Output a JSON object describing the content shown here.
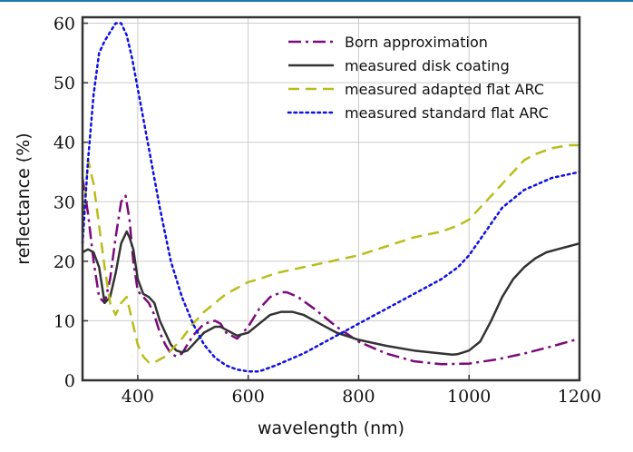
{
  "chart_data": {
    "type": "line",
    "xlabel": "wavelength (nm)",
    "ylabel": "reflectance (%)",
    "xlim": [
      300,
      1200
    ],
    "ylim": [
      0,
      61
    ],
    "xticks": [
      400,
      600,
      800,
      1000,
      1200
    ],
    "yticks": [
      0,
      10,
      20,
      30,
      40,
      50,
      60
    ],
    "grid": true,
    "legend_position": "top-right",
    "series": [
      {
        "name": "Born approximation",
        "color": "#7b0a7b",
        "dash": "dashdot",
        "x": [
          300,
          310,
          320,
          330,
          340,
          350,
          360,
          370,
          378,
          385,
          392,
          400,
          410,
          420,
          430,
          440,
          450,
          460,
          470,
          480,
          490,
          500,
          520,
          540,
          550,
          560,
          580,
          600,
          620,
          640,
          660,
          670,
          690,
          720,
          760,
          800,
          850,
          900,
          950,
          1000,
          1050,
          1100,
          1150,
          1200
        ],
        "y": [
          34,
          28,
          20,
          14,
          13,
          17,
          24,
          30,
          31,
          27,
          20,
          15,
          14,
          13,
          11,
          8,
          6,
          4.5,
          4,
          4.5,
          6,
          7.5,
          9.5,
          10,
          9.5,
          8,
          7,
          9,
          12,
          14,
          14.8,
          14.8,
          14,
          12,
          9,
          6.5,
          4.5,
          3.2,
          2.7,
          2.8,
          3.5,
          4.5,
          5.7,
          7
        ]
      },
      {
        "name": "measured disk coating",
        "color": "#333333",
        "dash": "solid",
        "x": [
          300,
          310,
          320,
          330,
          340,
          350,
          360,
          370,
          380,
          385,
          392,
          400,
          410,
          420,
          430,
          440,
          450,
          460,
          470,
          480,
          490,
          500,
          520,
          540,
          550,
          560,
          580,
          600,
          620,
          640,
          660,
          680,
          700,
          730,
          760,
          800,
          850,
          900,
          950,
          970,
          980,
          1000,
          1020,
          1040,
          1060,
          1080,
          1100,
          1120,
          1140,
          1160,
          1180,
          1200
        ],
        "y": [
          21.5,
          22,
          21.5,
          19,
          13,
          14,
          18,
          23,
          25,
          24,
          22,
          17,
          14.5,
          14,
          13,
          10,
          8,
          6,
          5,
          4.7,
          5,
          6,
          8,
          9,
          9,
          8.5,
          7.5,
          8,
          9.5,
          11,
          11.5,
          11.5,
          11,
          9.5,
          8,
          6.8,
          5.8,
          5,
          4.5,
          4.3,
          4.4,
          5,
          6.5,
          10,
          14,
          17,
          19,
          20.5,
          21.5,
          22,
          22.5,
          23
        ]
      },
      {
        "name": "measured adapted flat ARC",
        "color": "#b8bd1a",
        "dash": "dashed",
        "x": [
          300,
          310,
          320,
          330,
          340,
          350,
          360,
          370,
          380,
          390,
          400,
          410,
          420,
          430,
          440,
          450,
          460,
          480,
          500,
          520,
          540,
          560,
          580,
          600,
          620,
          650,
          700,
          750,
          800,
          850,
          900,
          950,
          980,
          1000,
          1050,
          1080,
          1100,
          1120,
          1150,
          1180,
          1200
        ],
        "y": [
          25,
          37,
          33,
          26,
          19,
          13,
          11,
          13,
          14,
          10,
          6,
          4,
          3,
          3,
          3.5,
          4,
          5,
          7,
          9.5,
          11.5,
          13,
          14.5,
          15.5,
          16.5,
          17,
          18,
          19,
          20,
          21,
          22.5,
          24,
          25,
          26,
          27,
          32,
          35,
          37,
          38,
          39,
          39.5,
          39.5
        ]
      },
      {
        "name": "measured standard flat ARC",
        "color": "#1010e0",
        "dash": "dotted",
        "x": [
          300,
          310,
          320,
          330,
          340,
          350,
          360,
          370,
          380,
          390,
          400,
          420,
          440,
          460,
          480,
          500,
          520,
          540,
          560,
          580,
          600,
          620,
          650,
          700,
          750,
          800,
          850,
          900,
          950,
          980,
          1000,
          1030,
          1060,
          1100,
          1150,
          1200
        ],
        "y": [
          23,
          37,
          48,
          55,
          57,
          58.5,
          60,
          60,
          58,
          54,
          49,
          39,
          29,
          20,
          14,
          9.5,
          6,
          3.8,
          2.5,
          1.8,
          1.5,
          1.5,
          2.5,
          4.5,
          7,
          9.5,
          12,
          14.5,
          17,
          19,
          21,
          25,
          29,
          32,
          34,
          35
        ]
      }
    ]
  }
}
